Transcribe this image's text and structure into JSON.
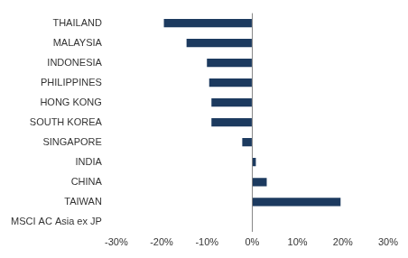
{
  "chart_data": {
    "type": "bar",
    "orientation": "horizontal",
    "categories": [
      "THAILAND",
      "MALAYSIA",
      "INDONESIA",
      "PHILIPPINES",
      "HONG KONG",
      "SOUTH KOREA",
      "SINGAPORE",
      "INDIA",
      "CHINA",
      "TAIWAN",
      "MSCI AC Asia ex JP"
    ],
    "values": [
      -19.5,
      -14.5,
      -10,
      -9.5,
      -9,
      -9,
      -2.2,
      0.8,
      3.2,
      19.5,
      0
    ],
    "color": "#1c3a5f",
    "xlim": [
      -30,
      30
    ],
    "xticks": [
      {
        "value": -30,
        "label": "-30%"
      },
      {
        "value": -20,
        "label": "-20%"
      },
      {
        "value": -10,
        "label": "-10%"
      },
      {
        "value": 0,
        "label": "0%"
      },
      {
        "value": 10,
        "label": "10%"
      },
      {
        "value": 20,
        "label": "20%"
      },
      {
        "value": 30,
        "label": "30%"
      }
    ],
    "grid": false,
    "data_labels": false
  }
}
